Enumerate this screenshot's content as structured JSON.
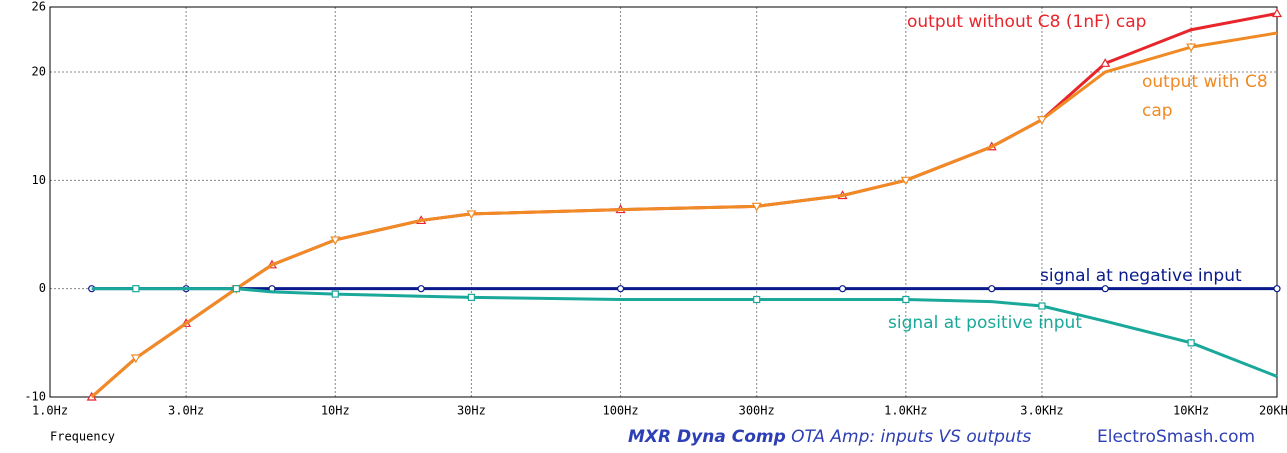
{
  "chart_data": {
    "type": "line",
    "x_label": "Frequency",
    "caption_bold": "MXR Dyna Comp",
    "caption": "OTA Amp: inputs VS outputs",
    "credit": "ElectroSmash.com",
    "xscale": "log",
    "x": [
      1.4,
      2,
      3,
      4.5,
      6,
      10,
      20,
      30,
      100,
      300,
      600,
      1000,
      2000,
      3000,
      5000,
      10000,
      20000
    ],
    "xlim": [
      1,
      20000
    ],
    "xticks": [
      {
        "value": 1,
        "label": "1.0Hz"
      },
      {
        "value": 3,
        "label": "3.0Hz"
      },
      {
        "value": 10,
        "label": "10Hz"
      },
      {
        "value": 30,
        "label": "30Hz"
      },
      {
        "value": 100,
        "label": "100Hz"
      },
      {
        "value": 300,
        "label": "300Hz"
      },
      {
        "value": 1000,
        "label": "1.0KHz"
      },
      {
        "value": 3000,
        "label": "3.0KHz"
      },
      {
        "value": 10000,
        "label": "10KHz"
      },
      {
        "value": 20000,
        "label": "20KHz"
      }
    ],
    "ylim": [
      -10,
      26
    ],
    "yticks": [
      26,
      20,
      10,
      0,
      -10
    ],
    "grid": true,
    "series": [
      {
        "name": "output without C8 (1nF) cap",
        "color": "#e8252b",
        "marker": "triangle",
        "values": [
          -10,
          -6.4,
          -3.2,
          0,
          2.2,
          4.5,
          6.3,
          6.9,
          7.3,
          7.6,
          8.6,
          10,
          13.1,
          15.6,
          20.8,
          23.9,
          25.4
        ]
      },
      {
        "name": "output with C8 cap",
        "color": "#f08a24",
        "marker": "triangle-down",
        "values": [
          -10,
          -6.4,
          -3.2,
          0,
          2.2,
          4.5,
          6.3,
          6.9,
          7.3,
          7.6,
          8.6,
          10,
          13.1,
          15.6,
          20,
          22.3,
          23.6
        ]
      },
      {
        "name": "signal at negative input",
        "color": "#0a1a8c",
        "marker": "circle",
        "values": [
          0,
          0,
          0,
          0,
          0,
          0,
          0,
          0,
          0,
          0,
          0,
          0,
          0,
          0,
          0,
          0,
          0
        ]
      },
      {
        "name": "signal at positive input",
        "color": "#1aa89a",
        "marker": "square",
        "values": [
          0,
          0,
          0,
          0,
          -0.3,
          -0.5,
          -0.7,
          -0.8,
          -1,
          -1,
          -1,
          -1,
          -1.2,
          -1.6,
          -3,
          -5,
          -8.1
        ]
      }
    ]
  }
}
